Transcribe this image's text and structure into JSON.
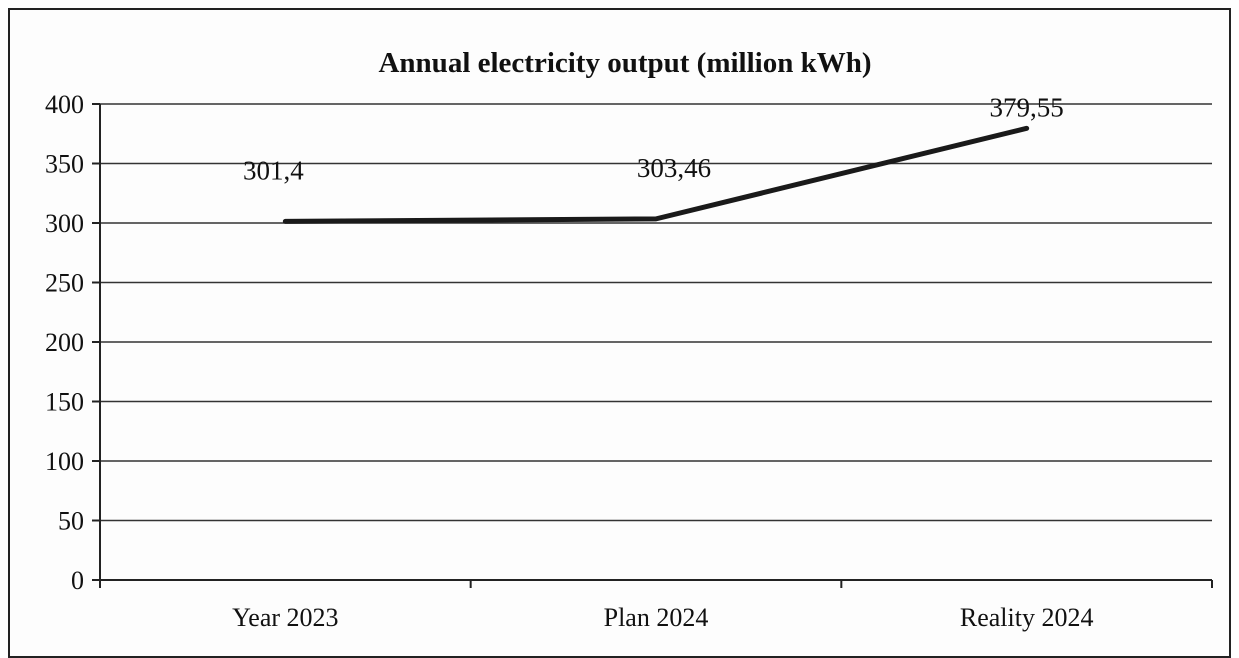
{
  "chart_data": {
    "type": "line",
    "title": "Annual electricity output (million kWh)",
    "categories": [
      "Year 2023",
      "Plan 2024",
      "Reality 2024"
    ],
    "series": [
      {
        "values": [
          301.4,
          303.46,
          379.55
        ]
      }
    ],
    "data_labels": [
      "301,4",
      "303,46",
      "379,55"
    ],
    "y_ticks": [
      "0",
      "50",
      "100",
      "150",
      "200",
      "250",
      "300",
      "350",
      "400"
    ],
    "ylim": [
      0,
      400
    ],
    "grid": true,
    "legend": "none",
    "line_color": "#1a1a1a"
  }
}
